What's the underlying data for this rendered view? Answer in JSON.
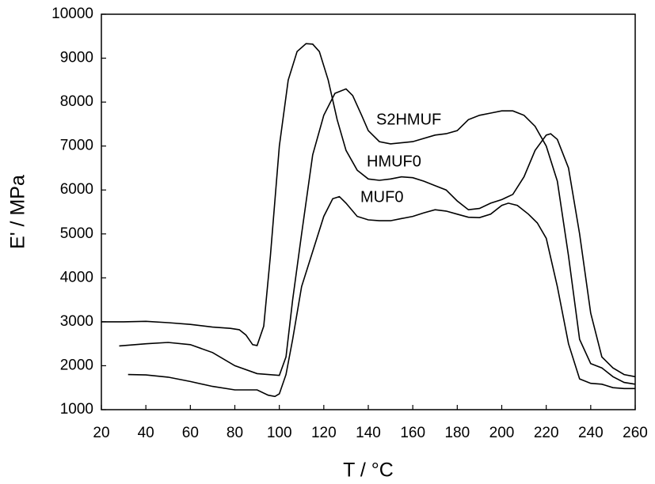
{
  "chart_data": {
    "type": "line",
    "xlabel": "T / °C",
    "ylabel": "E' / MPa",
    "xlim": [
      20,
      260
    ],
    "xticks": [
      20,
      40,
      60,
      80,
      100,
      120,
      140,
      160,
      180,
      200,
      220,
      240,
      260
    ],
    "ylim": [
      1000,
      10000
    ],
    "yticks": [
      1000,
      2000,
      3000,
      4000,
      5000,
      6000,
      7000,
      8000,
      9000,
      10000
    ],
    "series": [
      {
        "name": "HMUF0",
        "color": "#000000",
        "x": [
          20,
          30,
          40,
          50,
          60,
          70,
          78,
          82,
          85,
          88,
          90,
          93,
          96,
          100,
          104,
          108,
          112,
          115,
          118,
          122,
          126,
          130,
          135,
          140,
          145,
          150,
          155,
          160,
          165,
          170,
          175,
          180,
          185,
          190,
          195,
          200,
          205,
          210,
          215,
          220,
          222,
          225,
          230,
          235,
          240,
          245,
          250,
          255,
          260
        ],
        "values": [
          3000,
          3000,
          3010,
          2980,
          2940,
          2880,
          2850,
          2820,
          2700,
          2480,
          2460,
          2900,
          4500,
          7000,
          8500,
          9150,
          9330,
          9320,
          9150,
          8500,
          7600,
          6900,
          6450,
          6250,
          6220,
          6250,
          6300,
          6280,
          6200,
          6100,
          6000,
          5750,
          5550,
          5580,
          5700,
          5780,
          5900,
          6300,
          6900,
          7250,
          7280,
          7150,
          6500,
          5000,
          3200,
          2200,
          1950,
          1800,
          1750
        ]
      },
      {
        "name": "S2HMUF",
        "color": "#000000",
        "x": [
          28,
          40,
          50,
          60,
          70,
          80,
          90,
          100,
          103,
          106,
          110,
          115,
          120,
          125,
          130,
          133,
          137,
          140,
          145,
          150,
          160,
          170,
          175,
          180,
          185,
          190,
          195,
          200,
          205,
          210,
          215,
          220,
          225,
          230,
          235,
          240,
          245,
          250,
          255,
          260
        ],
        "values": [
          2450,
          2500,
          2530,
          2480,
          2300,
          2000,
          1820,
          1780,
          2200,
          3500,
          5000,
          6800,
          7700,
          8200,
          8300,
          8150,
          7700,
          7350,
          7100,
          7050,
          7100,
          7250,
          7280,
          7350,
          7600,
          7700,
          7750,
          7800,
          7800,
          7700,
          7450,
          7000,
          6200,
          4500,
          2600,
          2050,
          1950,
          1750,
          1620,
          1580
        ]
      },
      {
        "name": "MUF0",
        "color": "#000000",
        "x": [
          32,
          40,
          50,
          60,
          70,
          80,
          90,
          95,
          98,
          100,
          103,
          106,
          110,
          115,
          120,
          124,
          127,
          130,
          135,
          140,
          145,
          150,
          155,
          160,
          165,
          170,
          175,
          180,
          185,
          190,
          195,
          200,
          203,
          207,
          212,
          216,
          220,
          225,
          230,
          235,
          240,
          245,
          250,
          255,
          260
        ],
        "values": [
          1800,
          1790,
          1740,
          1640,
          1530,
          1450,
          1450,
          1330,
          1300,
          1360,
          1800,
          2600,
          3800,
          4600,
          5400,
          5800,
          5850,
          5700,
          5400,
          5320,
          5300,
          5300,
          5350,
          5400,
          5480,
          5550,
          5520,
          5450,
          5380,
          5370,
          5450,
          5650,
          5700,
          5650,
          5450,
          5250,
          4900,
          3800,
          2500,
          1700,
          1600,
          1580,
          1500,
          1480,
          1480
        ]
      }
    ]
  }
}
